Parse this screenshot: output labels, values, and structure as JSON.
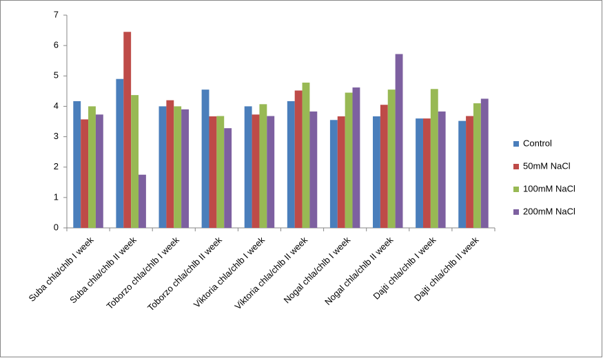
{
  "chart_data": {
    "type": "bar",
    "categories": [
      "Suba chla/chlb I week",
      "Suba chla/chlb II week",
      "Toborzo chla/chlb I week",
      "Toborzo chla/chlb II week",
      "Viktoria chla/chlb I week",
      "Viktoria chla/chlb II week",
      "Nogal chla/chlb I week",
      "Nogal chla/chlb II week",
      "Dajti chla/chlb I week",
      "Dajti chla/chlb II week"
    ],
    "series": [
      {
        "name": "Control",
        "color": "#4a7ebb",
        "values": [
          4.17,
          4.9,
          4.0,
          4.55,
          4.0,
          4.17,
          3.55,
          3.67,
          3.6,
          3.52
        ]
      },
      {
        "name": "50mM NaCl",
        "color": "#be4b48",
        "values": [
          3.57,
          6.45,
          4.2,
          3.67,
          3.73,
          4.52,
          3.67,
          4.05,
          3.6,
          3.68
        ]
      },
      {
        "name": "100mM NaCl",
        "color": "#98b954",
        "values": [
          4.0,
          4.37,
          4.0,
          3.68,
          4.07,
          4.78,
          4.45,
          4.55,
          4.57,
          4.1
        ]
      },
      {
        "name": "200mM NaCl",
        "color": "#7d60a0",
        "values": [
          3.73,
          1.75,
          3.9,
          3.28,
          3.68,
          3.83,
          4.62,
          5.72,
          3.83,
          4.25
        ]
      }
    ],
    "ylim": [
      0,
      7
    ],
    "yticks": [
      0,
      1,
      2,
      3,
      4,
      5,
      6,
      7
    ],
    "grid": false,
    "legend": "right"
  }
}
